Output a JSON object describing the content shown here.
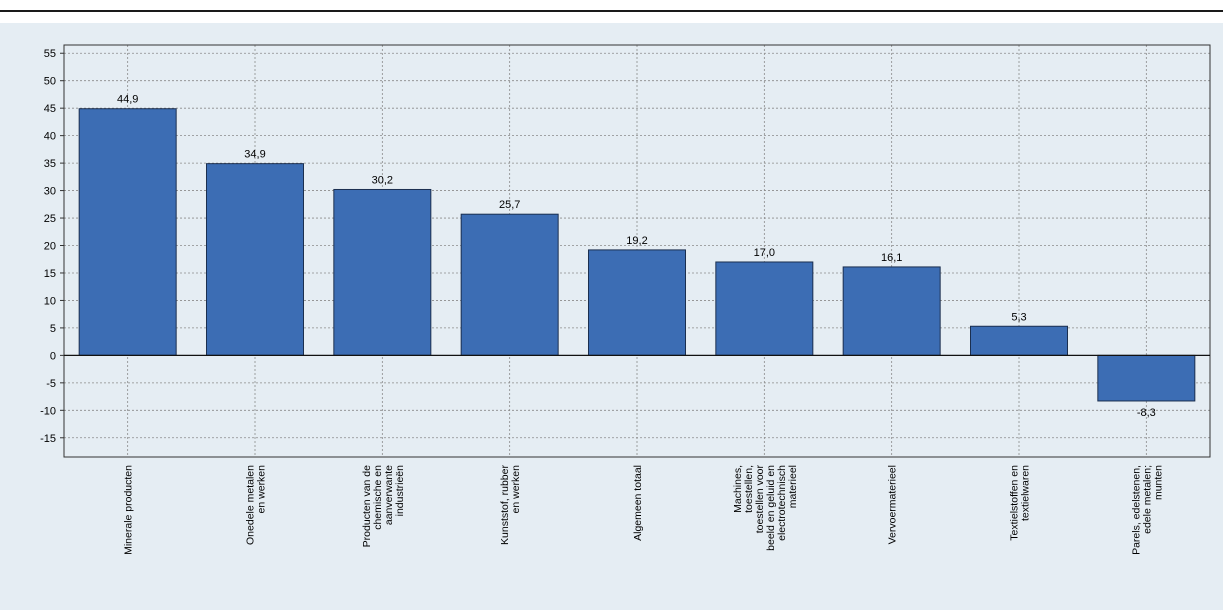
{
  "chart_data": {
    "type": "bar",
    "categories": [
      [
        "Minerale producten"
      ],
      [
        "Onedele metalen",
        "en werken"
      ],
      [
        "Producten van de",
        "chemische en",
        "aanverwante",
        "industrieën"
      ],
      [
        "Kunststof, rubber",
        "en werken"
      ],
      [
        "Algemeen totaal"
      ],
      [
        "Machines,",
        "toestellen,",
        "toestellen voor",
        "beeld en geluid en",
        "electrotechnisch",
        "materieel"
      ],
      [
        "Vervoermaterieel"
      ],
      [
        "Textielstoffen en",
        "textielwaren"
      ],
      [
        "Parels, edelstenen,",
        "edele metalen;",
        "munten"
      ]
    ],
    "values": [
      44.9,
      34.9,
      30.2,
      25.7,
      19.2,
      17.0,
      16.1,
      5.3,
      -8.3
    ],
    "value_labels": [
      "44,9",
      "34,9",
      "30,2",
      "25,7",
      "19,2",
      "17,0",
      "16,1",
      "5,3",
      "-8,3"
    ],
    "yticks": [
      "55",
      "50",
      "45",
      "40",
      "35",
      "30",
      "25",
      "20",
      "15",
      "10",
      "5",
      "0",
      "-5",
      "-10",
      "-15"
    ],
    "ylim": [
      -18.5,
      56.5
    ],
    "grid": true,
    "bar_color": "#3c6db4",
    "title": "",
    "xlabel": "",
    "ylabel": ""
  }
}
